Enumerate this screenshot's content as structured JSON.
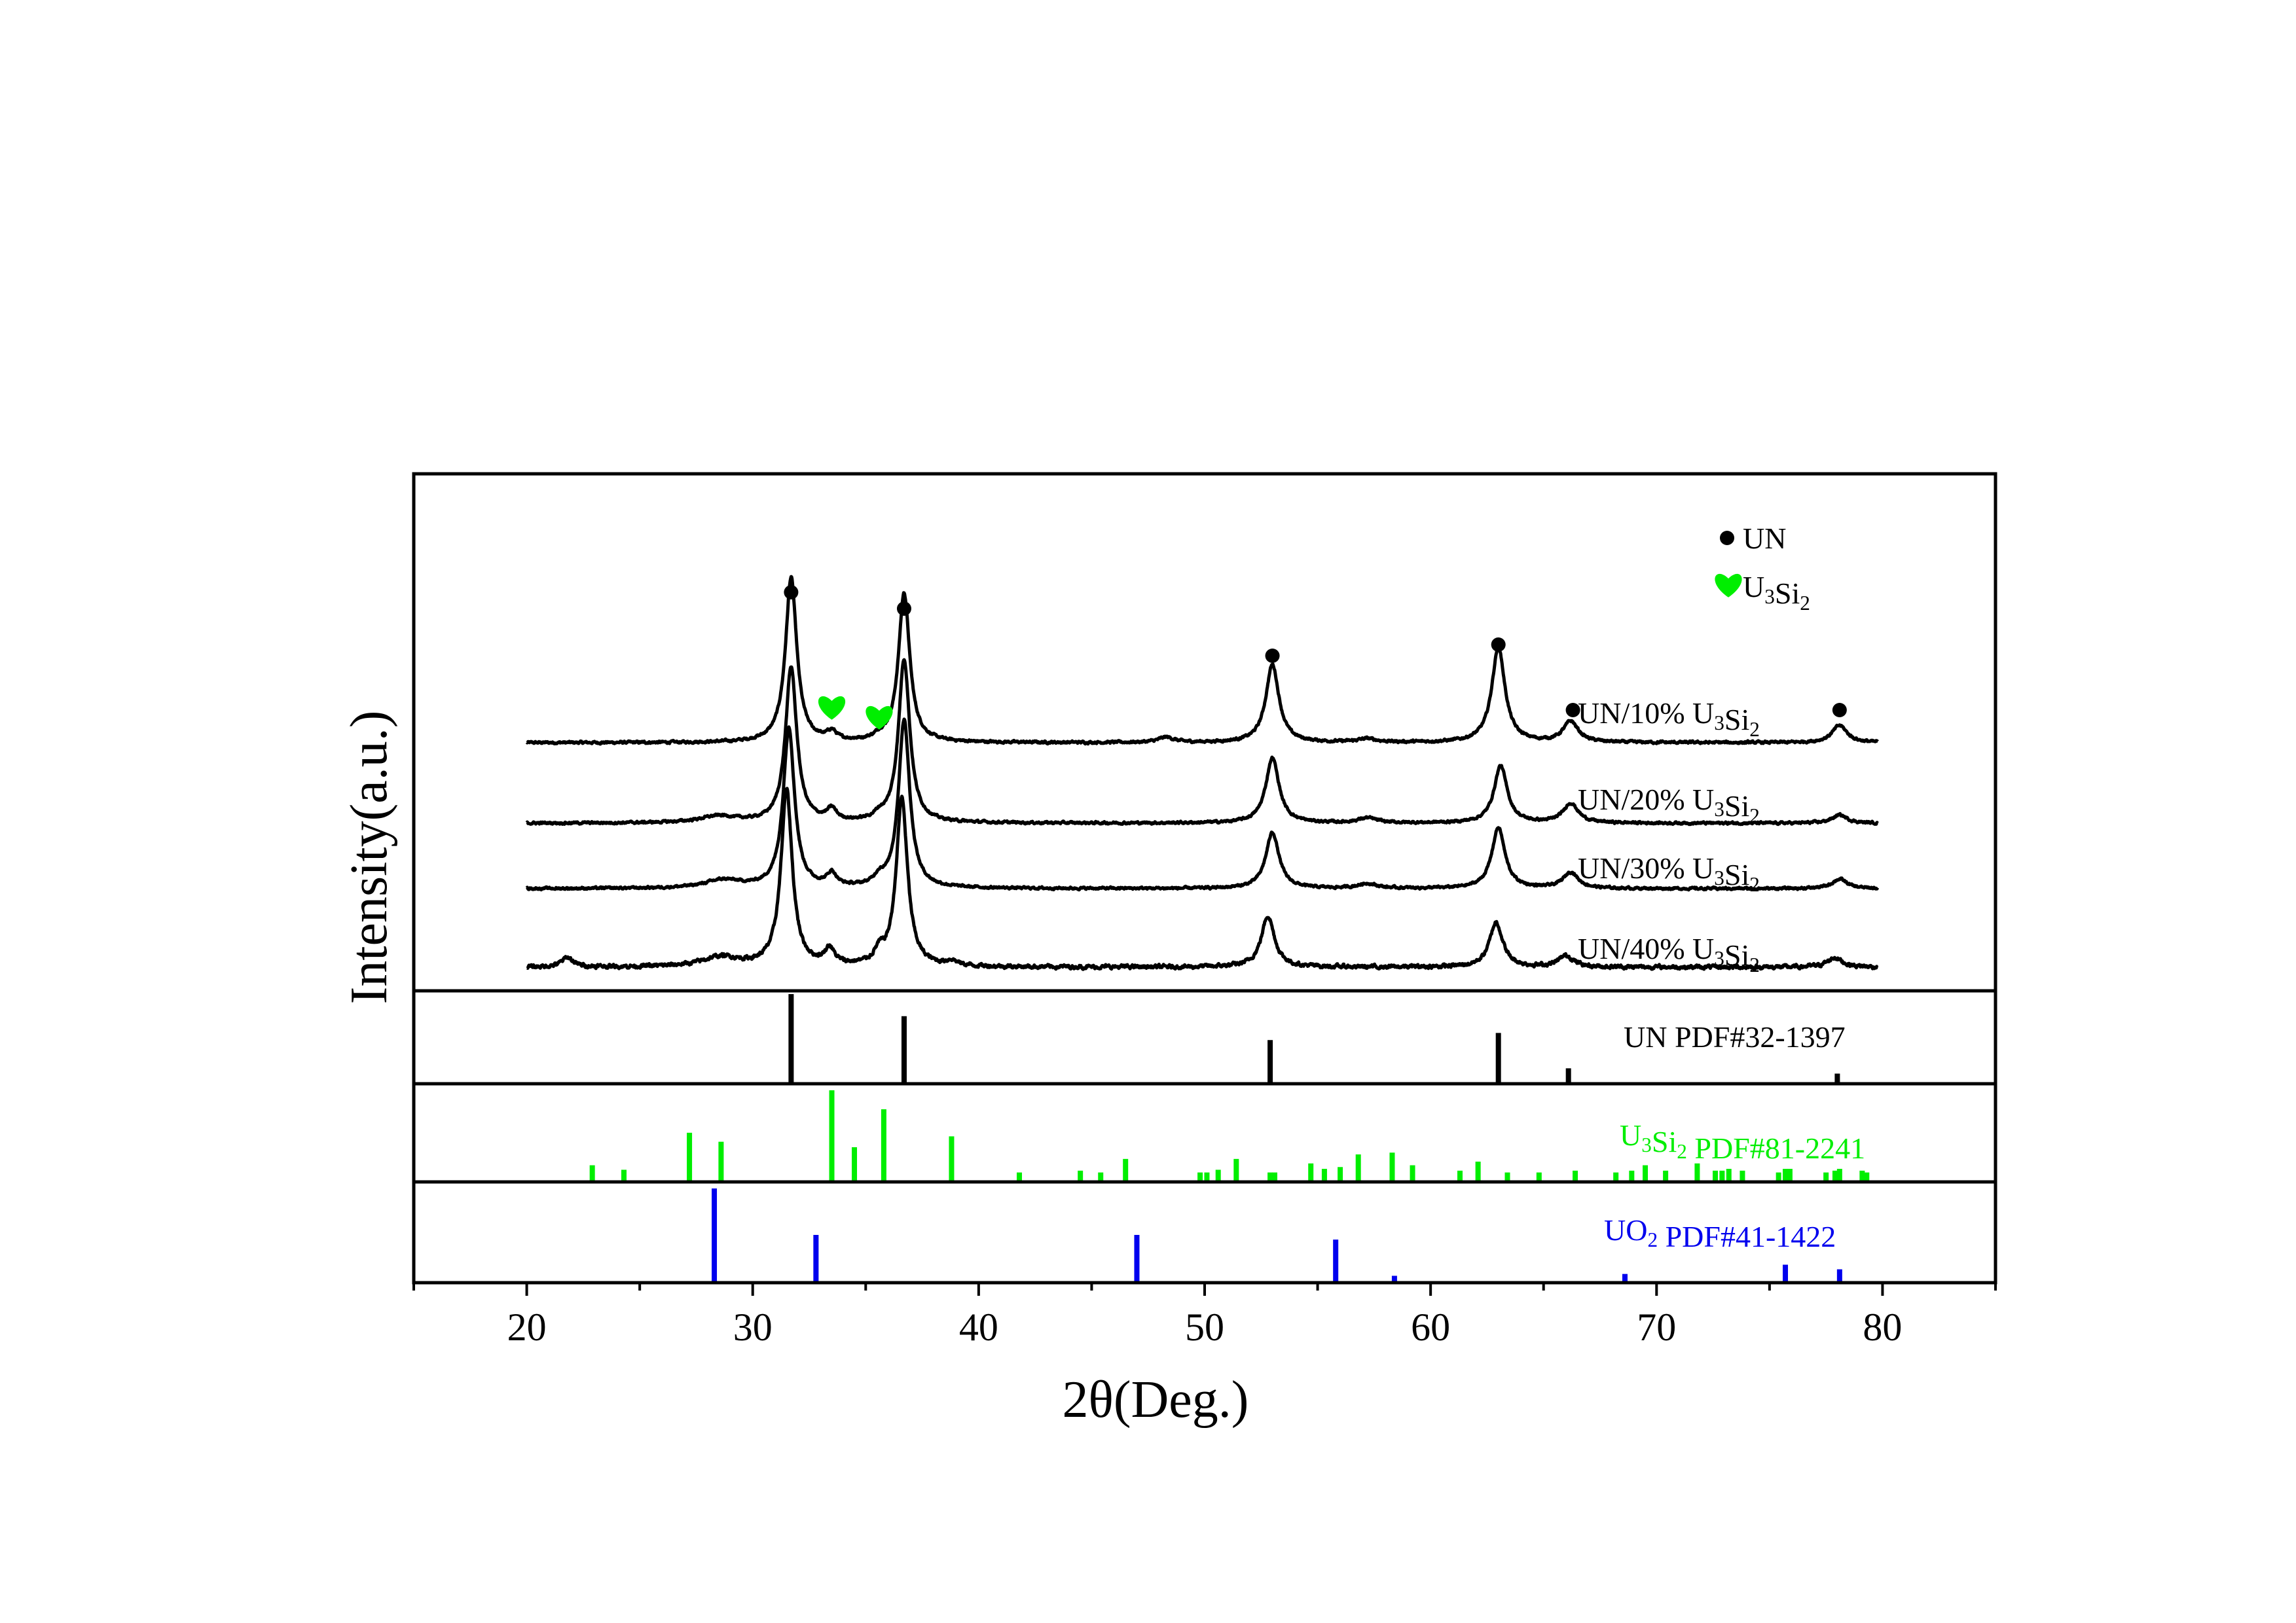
{
  "chart_data": {
    "type": "line",
    "title": "",
    "xlabel": "2θ(Deg.)",
    "ylabel": "Intensity(a.u.)",
    "xlim": [
      15,
      85
    ],
    "xticks": [
      20,
      30,
      40,
      50,
      60,
      70,
      80
    ],
    "xtick_labels": [
      "20",
      "30",
      "40",
      "50",
      "60",
      "70",
      "80"
    ],
    "grid": false,
    "legend": {
      "position": "top-right",
      "entries": [
        {
          "marker": "circle",
          "color": "#000000",
          "label": "UN"
        },
        {
          "marker": "heart",
          "color": "#00ee00",
          "label_main": "U",
          "sub1": "3",
          "label_mid": "Si",
          "sub2": "2"
        }
      ]
    },
    "series": [
      {
        "name": "UN/10% U3Si2",
        "label": {
          "main": "UN/10% U",
          "sub1": "3",
          "mid": "Si",
          "sub2": "2"
        },
        "x_range": [
          20,
          79.8
        ],
        "baseline": 0.12,
        "noise": 0.012,
        "peaks": [
          [
            31.7,
            0.95,
            0.3
          ],
          [
            33.5,
            0.05,
            0.25
          ],
          [
            35.6,
            0.02,
            0.25
          ],
          [
            36.7,
            0.86,
            0.3
          ],
          [
            48.3,
            0.03,
            0.4
          ],
          [
            53.0,
            0.45,
            0.35
          ],
          [
            57.2,
            0.02,
            0.5
          ],
          [
            63.0,
            0.55,
            0.35
          ],
          [
            66.2,
            0.12,
            0.4
          ],
          [
            78.1,
            0.1,
            0.4
          ]
        ]
      },
      {
        "name": "UN/20% U3Si2",
        "label": {
          "main": "UN/20% U",
          "sub1": "3",
          "mid": "Si",
          "sub2": "2"
        },
        "x_range": [
          20,
          79.8
        ],
        "baseline": 0.12,
        "noise": 0.012,
        "peaks": [
          [
            28.5,
            0.04,
            1.0
          ],
          [
            31.7,
            0.95,
            0.3
          ],
          [
            33.5,
            0.07,
            0.25
          ],
          [
            35.6,
            0.03,
            0.25
          ],
          [
            36.7,
            1.0,
            0.3
          ],
          [
            53.0,
            0.4,
            0.35
          ],
          [
            57.2,
            0.03,
            0.5
          ],
          [
            63.1,
            0.35,
            0.35
          ],
          [
            66.2,
            0.12,
            0.4
          ],
          [
            78.1,
            0.05,
            0.4
          ]
        ]
      },
      {
        "name": "UN/30% U3Si2",
        "label": {
          "main": "UN/30% U",
          "sub1": "3",
          "mid": "Si",
          "sub2": "2"
        },
        "x_range": [
          20,
          79.8
        ],
        "baseline": 0.12,
        "noise": 0.012,
        "peaks": [
          [
            28.7,
            0.05,
            1.0
          ],
          [
            31.6,
            1.0,
            0.3
          ],
          [
            33.5,
            0.08,
            0.25
          ],
          [
            35.6,
            0.05,
            0.25
          ],
          [
            36.7,
            1.05,
            0.3
          ],
          [
            53.0,
            0.35,
            0.35
          ],
          [
            57.2,
            0.03,
            0.5
          ],
          [
            63.0,
            0.38,
            0.35
          ],
          [
            66.2,
            0.1,
            0.4
          ],
          [
            78.1,
            0.06,
            0.4
          ]
        ]
      },
      {
        "name": "UN/40% U3Si2",
        "label": {
          "main": "UN/40% U",
          "sub1": "3",
          "mid": "Si",
          "sub2": "2"
        },
        "x_range": [
          20,
          79.8
        ],
        "baseline": 0.12,
        "noise": 0.02,
        "peaks": [
          [
            21.8,
            0.06,
            0.3
          ],
          [
            28.6,
            0.06,
            1.0
          ],
          [
            31.5,
            1.1,
            0.3
          ],
          [
            33.4,
            0.1,
            0.25
          ],
          [
            35.6,
            0.07,
            0.25
          ],
          [
            36.6,
            1.05,
            0.3
          ],
          [
            38.8,
            0.03,
            0.3
          ],
          [
            52.8,
            0.32,
            0.35
          ],
          [
            62.9,
            0.28,
            0.35
          ],
          [
            66.0,
            0.07,
            0.4
          ],
          [
            77.9,
            0.06,
            0.4
          ]
        ]
      }
    ],
    "phase_markers": [
      {
        "marker": "circle",
        "color": "#000000",
        "x": [
          31.7,
          36.7,
          53.0,
          63.0,
          66.3,
          78.1
        ]
      },
      {
        "marker": "heart",
        "color": "#00ee00",
        "x": [
          33.5,
          35.6
        ]
      }
    ],
    "reference_patterns": [
      {
        "name": "UN PDF#32-1397",
        "color": "#000000",
        "label": {
          "main": "UN PDF#32-1397",
          "sub1": "",
          "mid": "",
          "sub2": ""
        },
        "lines": [
          [
            31.7,
            100
          ],
          [
            36.7,
            75
          ],
          [
            52.9,
            48
          ],
          [
            63.0,
            56
          ],
          [
            66.1,
            16
          ],
          [
            78.0,
            10
          ]
        ]
      },
      {
        "name": "U3Si2 PDF#81-2241",
        "color": "#00ee00",
        "label": {
          "main": "U",
          "sub1": "3",
          "mid": "Si",
          "sub2": "2",
          "rest": " PDF#81-2241"
        },
        "lines": [
          [
            22.9,
            17
          ],
          [
            24.3,
            12
          ],
          [
            27.2,
            53
          ],
          [
            28.6,
            43
          ],
          [
            33.5,
            100
          ],
          [
            34.5,
            37
          ],
          [
            35.8,
            79
          ],
          [
            38.8,
            49
          ],
          [
            41.8,
            9
          ],
          [
            44.5,
            11
          ],
          [
            45.4,
            9
          ],
          [
            46.5,
            24
          ],
          [
            49.8,
            9
          ],
          [
            50.1,
            9
          ],
          [
            50.6,
            12
          ],
          [
            51.4,
            24
          ],
          [
            52.9,
            9
          ],
          [
            53.1,
            9
          ],
          [
            54.7,
            19
          ],
          [
            55.3,
            13
          ],
          [
            56.0,
            15
          ],
          [
            56.8,
            29
          ],
          [
            58.3,
            31
          ],
          [
            59.2,
            17
          ],
          [
            61.3,
            11
          ],
          [
            62.1,
            21
          ],
          [
            63.4,
            9
          ],
          [
            64.8,
            9
          ],
          [
            66.4,
            11
          ],
          [
            68.2,
            9
          ],
          [
            68.9,
            11
          ],
          [
            69.5,
            17
          ],
          [
            70.4,
            11
          ],
          [
            71.8,
            19
          ],
          [
            72.6,
            11
          ],
          [
            72.9,
            11
          ],
          [
            73.2,
            13
          ],
          [
            73.8,
            11
          ],
          [
            75.4,
            9
          ],
          [
            75.7,
            13
          ],
          [
            75.9,
            13
          ],
          [
            77.5,
            9
          ],
          [
            77.9,
            11
          ],
          [
            78.1,
            13
          ],
          [
            79.1,
            11
          ],
          [
            79.3,
            9
          ]
        ]
      },
      {
        "name": "UO2 PDF#41-1422",
        "color": "#0000ee",
        "label": {
          "main": "UO",
          "sub1": "2",
          "mid": "",
          "sub2": "",
          "rest": " PDF#41-1422"
        },
        "lines": [
          [
            28.3,
            100
          ],
          [
            32.8,
            50
          ],
          [
            47.0,
            50
          ],
          [
            55.8,
            45
          ],
          [
            58.4,
            6
          ],
          [
            68.6,
            8
          ],
          [
            75.7,
            18
          ],
          [
            78.1,
            13
          ]
        ]
      }
    ]
  }
}
